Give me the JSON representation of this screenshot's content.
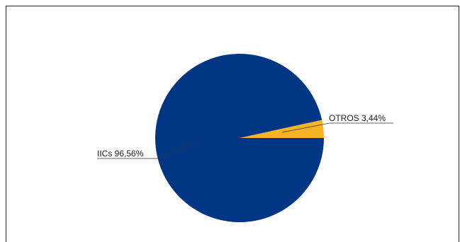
{
  "chart_data": {
    "type": "pie",
    "title": "",
    "slices": [
      {
        "label": "OTROS 3,44%",
        "name": "OTROS",
        "value": 3.44,
        "color": "#F7B423"
      },
      {
        "label": "IICs 96,56%",
        "name": "IICs",
        "value": 96.56,
        "color": "#003684"
      }
    ],
    "start_angle_deg": 0,
    "direction": "counterclockwise",
    "legend": "none",
    "labels_position": "outside with leader lines"
  }
}
